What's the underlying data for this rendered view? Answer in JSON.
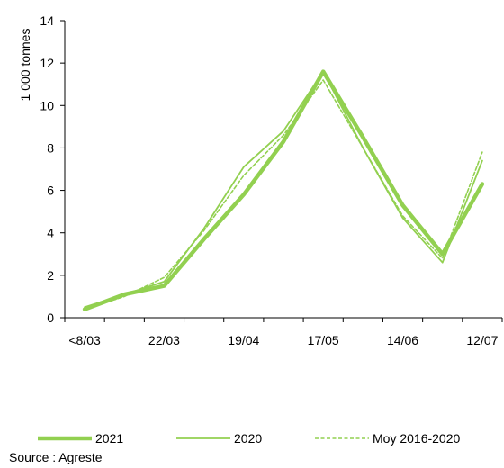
{
  "chart_data": {
    "type": "line",
    "ylabel": "1 000  tonnes",
    "ylim": [
      0,
      14
    ],
    "yticks": [
      0,
      2,
      4,
      6,
      8,
      10,
      12,
      14
    ],
    "xtick_labels": [
      "<8/03",
      "22/03",
      "19/04",
      "17/05",
      "14/06",
      "12/07"
    ],
    "colors": {
      "line": "#92d050",
      "axis": "#000000"
    },
    "series": [
      {
        "name": "2021",
        "style": "thick",
        "values": [
          0.4,
          1.1,
          1.5,
          3.7,
          5.8,
          8.3,
          11.6,
          8.5,
          5.3,
          3.0,
          6.3
        ]
      },
      {
        "name": "2020",
        "style": "thin",
        "values": [
          0.5,
          1.1,
          1.7,
          4.2,
          7.1,
          8.8,
          11.6,
          8.0,
          4.7,
          2.6,
          7.4
        ]
      },
      {
        "name": "Moy 2016-2020",
        "style": "dashed",
        "values": [
          0.4,
          1.0,
          1.9,
          4.1,
          6.7,
          8.6,
          11.2,
          8.0,
          4.8,
          2.8,
          7.8
        ]
      }
    ]
  },
  "source": "Source : Agreste"
}
